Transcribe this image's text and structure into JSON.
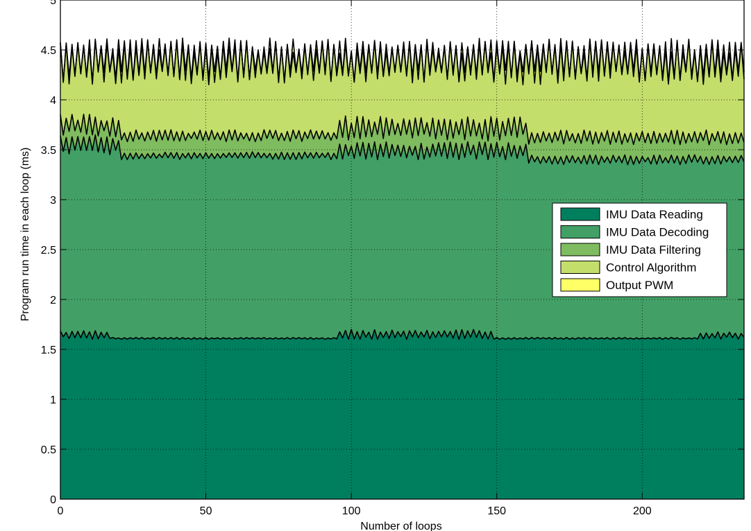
{
  "chart_data": {
    "type": "area",
    "stacked": true,
    "xlabel": "Number of loops",
    "ylabel": "Program run time in each loop (ms)",
    "xlim": [
      0,
      235
    ],
    "ylim": [
      0,
      5
    ],
    "x_ticks": [
      0,
      50,
      100,
      150,
      200
    ],
    "y_ticks": [
      0,
      0.5,
      1,
      1.5,
      2,
      2.5,
      3,
      3.5,
      4,
      4.5,
      5
    ],
    "x_tick_labels": [
      "0",
      "50",
      "100",
      "150",
      "200"
    ],
    "y_tick_labels": [
      "0",
      "0.5",
      "1",
      "1.5",
      "2",
      "2.5",
      "3",
      "3.5",
      "4",
      "4.5",
      "5"
    ],
    "grid": true,
    "legend_position": "right",
    "series": [
      {
        "name": "IMU Data Reading",
        "color": "#007f5f",
        "segments": [
          {
            "from": 0,
            "to": 17,
            "low": 1.6,
            "high": 1.69
          },
          {
            "from": 18,
            "to": 95,
            "low": 1.6,
            "high": 1.62
          },
          {
            "from": 96,
            "to": 148,
            "low": 1.6,
            "high": 1.7
          },
          {
            "from": 149,
            "to": 218,
            "low": 1.6,
            "high": 1.62
          },
          {
            "from": 219,
            "to": 235,
            "low": 1.6,
            "high": 1.68
          }
        ]
      },
      {
        "name": "IMU Data Decoding",
        "color": "#42a066",
        "segments": [
          {
            "from": 0,
            "to": 20,
            "low": 3.45,
            "high": 3.65
          },
          {
            "from": 21,
            "to": 95,
            "low": 3.4,
            "high": 3.48
          },
          {
            "from": 96,
            "to": 160,
            "low": 3.4,
            "high": 3.58
          },
          {
            "from": 161,
            "to": 235,
            "low": 3.35,
            "high": 3.45
          }
        ]
      },
      {
        "name": "IMU Data Filtering",
        "color": "#7fbb5f",
        "segments": [
          {
            "from": 0,
            "to": 20,
            "low": 3.62,
            "high": 3.86
          },
          {
            "from": 21,
            "to": 95,
            "low": 3.58,
            "high": 3.7
          },
          {
            "from": 96,
            "to": 160,
            "low": 3.58,
            "high": 3.84
          },
          {
            "from": 161,
            "to": 235,
            "low": 3.55,
            "high": 3.7
          }
        ]
      },
      {
        "name": "Control Algorithm",
        "color": "#c3de6b",
        "segments": [
          {
            "from": 0,
            "to": 235,
            "low": 4.15,
            "high": 4.6
          }
        ]
      },
      {
        "name": "Output PWM",
        "color": "#ffff66",
        "segments": [
          {
            "from": 0,
            "to": 235,
            "low": 4.16,
            "high": 4.62
          }
        ]
      }
    ]
  }
}
